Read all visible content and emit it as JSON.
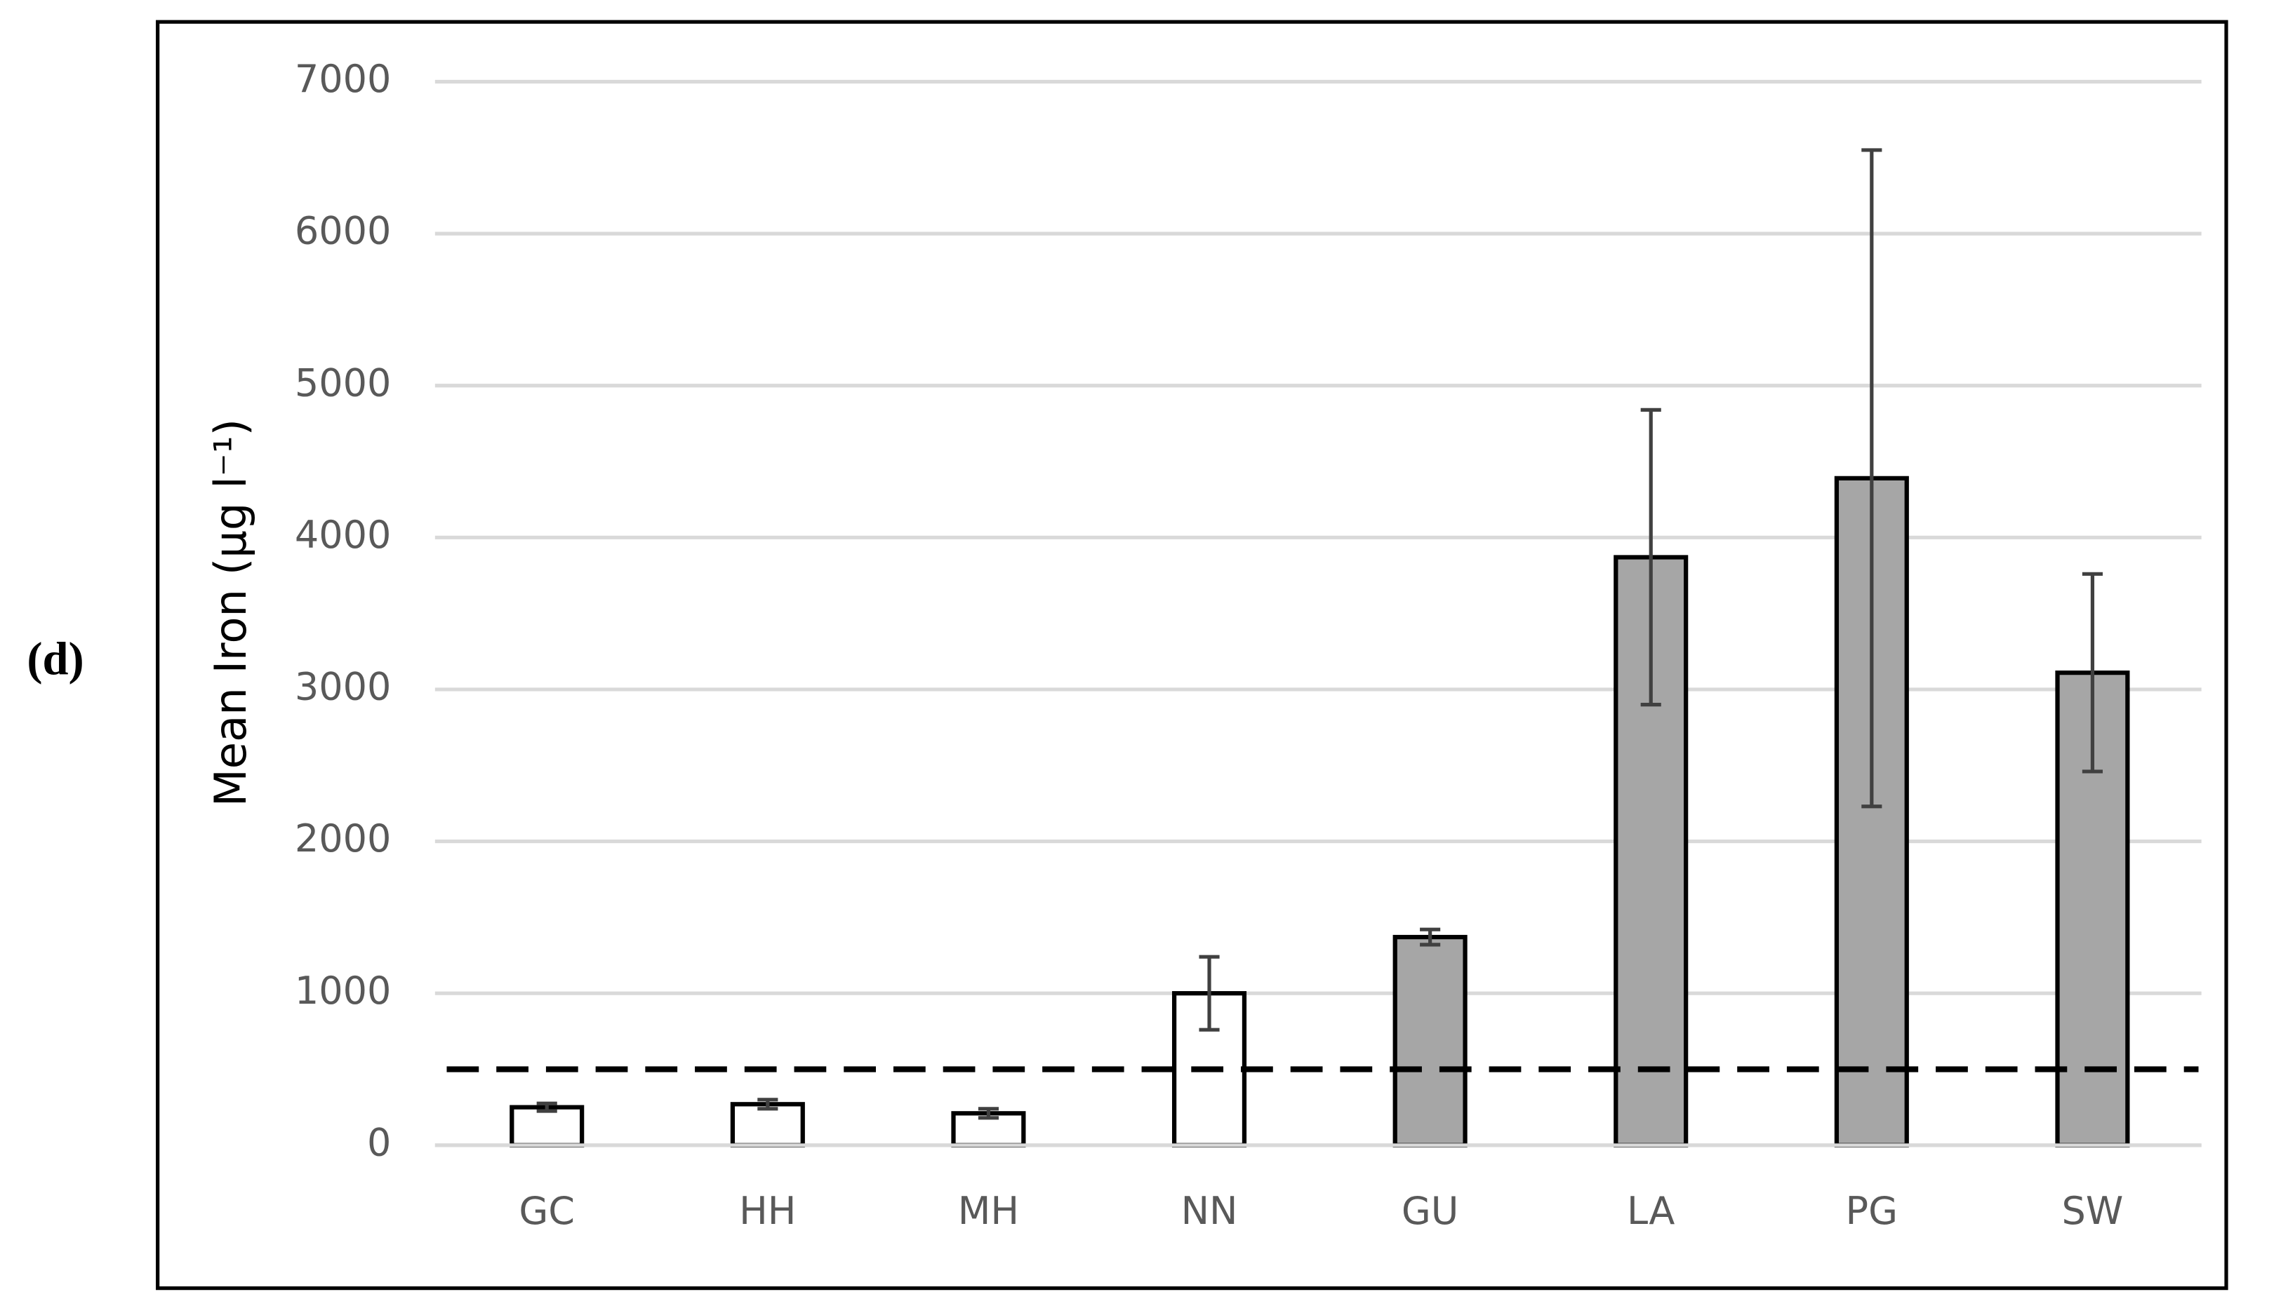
{
  "chart_data": {
    "type": "bar",
    "panel_label": "(d)",
    "ylabel": "Mean Iron (µg l⁻¹)",
    "categories": [
      "GC",
      "HH",
      "MH",
      "NN",
      "GU",
      "LA",
      "PG",
      "SW"
    ],
    "values": [
      250,
      270,
      210,
      1000,
      1370,
      3870,
      4390,
      3110
    ],
    "errors": [
      25,
      30,
      30,
      240,
      50,
      970,
      2160,
      650
    ],
    "colors": [
      "#ffffff",
      "#ffffff",
      "#ffffff",
      "#ffffff",
      "#a6a6a6",
      "#a6a6a6",
      "#a6a6a6",
      "#a6a6a6"
    ],
    "reference_line": 500,
    "ylim": [
      0,
      7000
    ],
    "yticks": [
      0,
      1000,
      2000,
      3000,
      4000,
      5000,
      6000,
      7000
    ],
    "grid": true
  }
}
